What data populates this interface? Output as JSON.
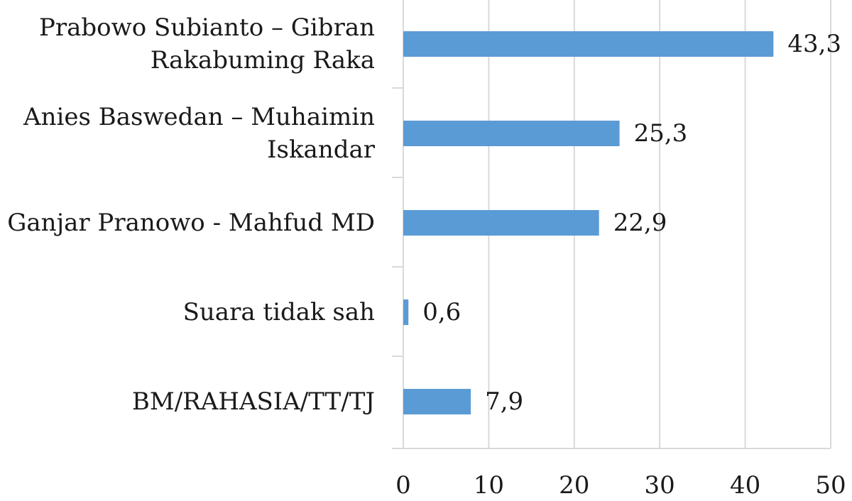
{
  "chart_data": {
    "type": "bar",
    "orientation": "horizontal",
    "categories": [
      "Prabowo Subianto – Gibran Rakabuming Raka",
      "Anies Baswedan – Muhaimin Iskandar",
      "Ganjar Pranowo - Mahfud MD",
      "Suara tidak sah",
      "BM/RAHASIA/TT/TJ"
    ],
    "category_lines": [
      [
        "Prabowo Subianto – Gibran",
        "Rakabuming Raka"
      ],
      [
        "Anies Baswedan – Muhaimin",
        "Iskandar"
      ],
      [
        "Ganjar Pranowo - Mahfud MD"
      ],
      [
        "Suara tidak sah"
      ],
      [
        "BM/RAHASIA/TT/TJ"
      ]
    ],
    "values": [
      43.3,
      25.3,
      22.9,
      0.6,
      7.9
    ],
    "value_labels": [
      "43,3",
      "25,3",
      "22,9",
      "0,6",
      "7,9"
    ],
    "xlim": [
      0,
      50
    ],
    "xticks": [
      0,
      10,
      20,
      30,
      40,
      50
    ],
    "grid": true,
    "bar_color": "#5b9bd5",
    "grid_color": "#d9d9d9",
    "title": "",
    "xlabel": "",
    "ylabel": ""
  }
}
